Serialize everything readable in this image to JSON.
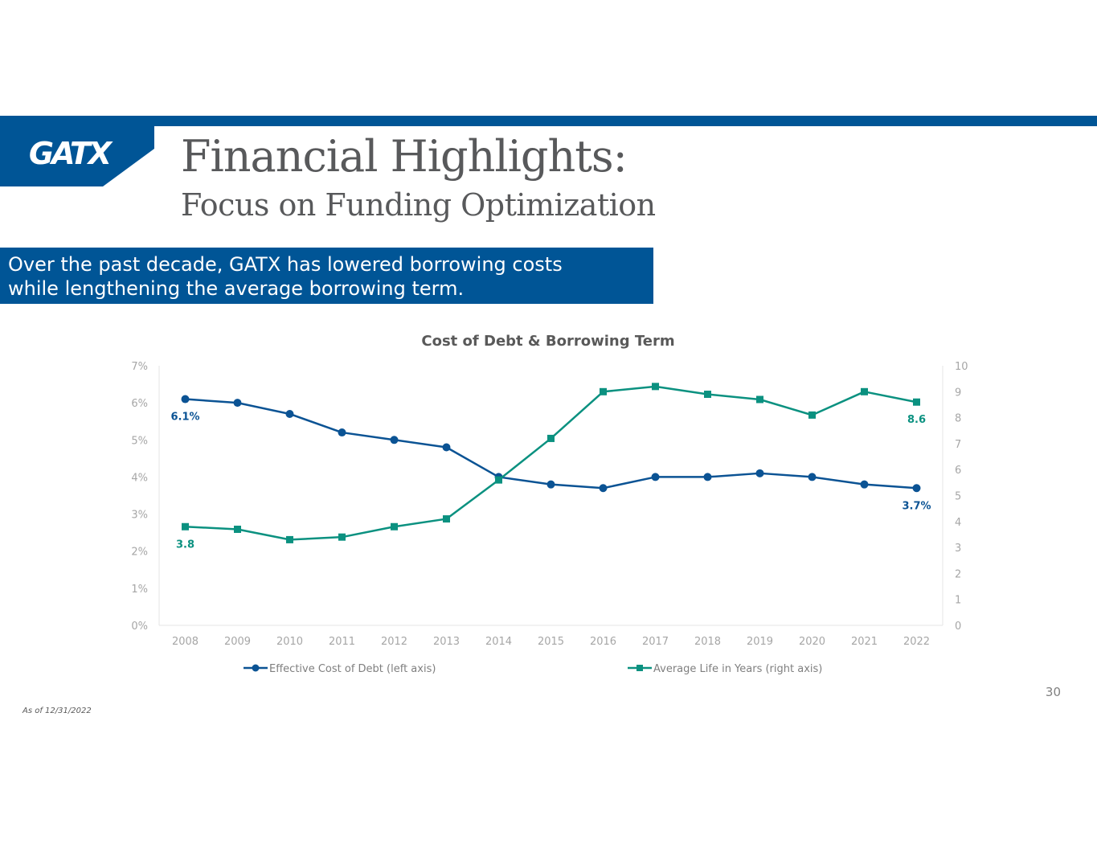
{
  "header": {
    "logo_text": "GATX",
    "title": "Financial Highlights:",
    "subtitle": "Focus on Funding Optimization"
  },
  "banner": {
    "line1": "Over the past decade, GATX has lowered borrowing costs",
    "line2": "while lengthening the average borrowing term."
  },
  "colors": {
    "brand_blue": "#005596",
    "series_blue": "#0b5394",
    "series_teal": "#0b9180",
    "title_gray": "#58595b"
  },
  "chart_data": {
    "type": "line",
    "title": "Cost of Debt & Borrowing Term",
    "categories": [
      "2008",
      "2009",
      "2010",
      "2011",
      "2012",
      "2013",
      "2014",
      "2015",
      "2016",
      "2017",
      "2018",
      "2019",
      "2020",
      "2021",
      "2022"
    ],
    "left_axis": {
      "ylim": [
        0,
        7
      ],
      "ticks": [
        0,
        1,
        2,
        3,
        4,
        5,
        6,
        7
      ],
      "tick_labels": [
        "0%",
        "1%",
        "2%",
        "3%",
        "4%",
        "5%",
        "6%",
        "7%"
      ]
    },
    "right_axis": {
      "ylim": [
        0,
        10
      ],
      "ticks": [
        0,
        1,
        2,
        3,
        4,
        5,
        6,
        7,
        8,
        9,
        10
      ],
      "tick_labels": [
        "0",
        "1",
        "2",
        "3",
        "4",
        "5",
        "6",
        "7",
        "8",
        "9",
        "10"
      ]
    },
    "series": [
      {
        "name": "Effective Cost of Debt (left axis)",
        "axis": "left",
        "marker": "circle",
        "color": "#0b5394",
        "values": [
          6.1,
          6.0,
          5.7,
          5.2,
          5.0,
          4.8,
          4.0,
          3.8,
          3.7,
          4.0,
          4.0,
          4.1,
          4.0,
          3.8,
          3.7
        ],
        "labels": [
          {
            "index": 0,
            "text": "6.1%",
            "position": "below"
          },
          {
            "index": 14,
            "text": "3.7%",
            "position": "below"
          }
        ]
      },
      {
        "name": "Average Life in Years (right axis)",
        "axis": "right",
        "marker": "square",
        "color": "#0b9180",
        "values": [
          3.8,
          3.7,
          3.3,
          3.4,
          3.8,
          4.1,
          5.6,
          7.2,
          9.0,
          9.2,
          8.9,
          8.7,
          8.1,
          9.0,
          8.6
        ],
        "labels": [
          {
            "index": 0,
            "text": "3.8",
            "position": "below"
          },
          {
            "index": 14,
            "text": "8.6",
            "position": "below"
          }
        ]
      }
    ],
    "legend_position": "bottom"
  },
  "footer": {
    "page_number": "30",
    "footnote": "As of 12/31/2022"
  }
}
